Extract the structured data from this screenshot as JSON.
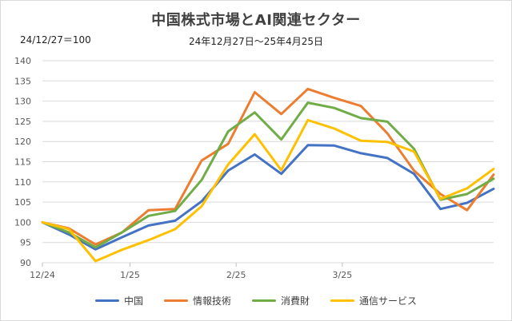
{
  "chart_data": {
    "type": "line",
    "title": "中国株式市場とAI関連セクター",
    "subtitle": "24年12月27日～25年4月25日",
    "base_note": "24/12/27＝100",
    "ylim": [
      90,
      140
    ],
    "yticks": [
      90,
      95,
      100,
      105,
      110,
      115,
      120,
      125,
      130,
      135,
      140
    ],
    "xticks": [
      {
        "label": "12/24",
        "index": 0
      },
      {
        "label": "1/25",
        "index": 3.3
      },
      {
        "label": "2/25",
        "index": 7.3
      },
      {
        "label": "3/25",
        "index": 11.3
      }
    ],
    "grid": true,
    "legend_position": "bottom",
    "series": [
      {
        "name": "中国",
        "color": "#4472C4",
        "values": [
          100,
          97,
          93.3,
          96.3,
          99.2,
          100.4,
          105.2,
          112.8,
          116.8,
          112,
          119.1,
          119,
          117.1,
          115.9,
          112,
          103.3,
          104.8,
          108.3
        ]
      },
      {
        "name": "情報技術",
        "color": "#ED7D31",
        "values": [
          100,
          98.5,
          94.5,
          97.5,
          103,
          103.3,
          115.3,
          119.4,
          132.2,
          126.8,
          133,
          130.8,
          128.8,
          122,
          112.8,
          107,
          103,
          111.8
        ]
      },
      {
        "name": "消費財",
        "color": "#70AD47",
        "values": [
          100,
          97.5,
          93.8,
          97.5,
          101.6,
          102.8,
          110.5,
          122.5,
          127.2,
          120.5,
          129.6,
          128.3,
          125.8,
          124.9,
          118.2,
          105.6,
          107,
          110.8
        ]
      },
      {
        "name": "通信サービス",
        "color": "#FFC000",
        "values": [
          100,
          98.3,
          90.4,
          93.2,
          95.6,
          98.3,
          104,
          114.3,
          121.8,
          112.9,
          125.3,
          123.2,
          120.2,
          119.9,
          117.5,
          105.8,
          108.4,
          113.2
        ]
      }
    ]
  }
}
